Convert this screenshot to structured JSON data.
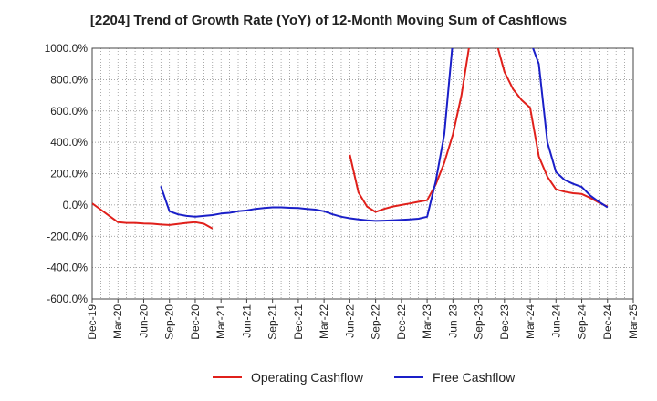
{
  "chart_data": {
    "type": "line",
    "title": "[2204]  Trend of Growth Rate (YoY) of 12-Month Moving Sum of Cashflows",
    "xlabel": "",
    "ylabel": "",
    "ylim": [
      -600,
      1000
    ],
    "y_ticks": [
      1000,
      800,
      600,
      400,
      200,
      0,
      -200,
      -400,
      -600
    ],
    "y_tick_labels": [
      "1000.0%",
      "800.0%",
      "600.0%",
      "400.0%",
      "200.0%",
      "0.0%",
      "-200.0%",
      "-400.0%",
      "-600.0%"
    ],
    "x_tick_labels": [
      "Dec-19",
      "Mar-20",
      "Jun-20",
      "Sep-20",
      "Dec-20",
      "Mar-21",
      "Jun-21",
      "Sep-21",
      "Dec-21",
      "Mar-22",
      "Jun-22",
      "Sep-22",
      "Dec-22",
      "Mar-23",
      "Jun-23",
      "Sep-23",
      "Dec-23",
      "Mar-24",
      "Jun-24",
      "Sep-24",
      "Dec-24",
      "Mar-25"
    ],
    "grid": true,
    "legend_position": "bottom-center",
    "series": [
      {
        "name": "Operating Cashflow",
        "color": "#e0201b",
        "points": [
          [
            "Dec-19",
            10
          ],
          [
            "Jan-20",
            -30
          ],
          [
            "Feb-20",
            -70
          ],
          [
            "Mar-20",
            -110
          ],
          [
            "Apr-20",
            -115
          ],
          [
            "May-20",
            -115
          ],
          [
            "Jun-20",
            -118
          ],
          [
            "Jul-20",
            -120
          ],
          [
            "Aug-20",
            -125
          ],
          [
            "Sep-20",
            -128
          ],
          [
            "Oct-20",
            -122
          ],
          [
            "Nov-20",
            -115
          ],
          [
            "Dec-20",
            -110
          ],
          [
            "Jan-21",
            -120
          ],
          [
            "Feb-21",
            -150
          ],
          [
            "Jun-22",
            320
          ],
          [
            "Jul-22",
            80
          ],
          [
            "Aug-22",
            -10
          ],
          [
            "Sep-22",
            -45
          ],
          [
            "Oct-22",
            -25
          ],
          [
            "Nov-22",
            -10
          ],
          [
            "Dec-22",
            0
          ],
          [
            "Jan-23",
            10
          ],
          [
            "Feb-23",
            20
          ],
          [
            "Mar-23",
            30
          ],
          [
            "Apr-23",
            130
          ],
          [
            "May-23",
            270
          ],
          [
            "Jun-23",
            450
          ],
          [
            "Jul-23",
            700
          ],
          [
            "Aug-23",
            1050
          ],
          [
            "Nov-23",
            1050
          ],
          [
            "Dec-23",
            850
          ],
          [
            "Jan-24",
            740
          ],
          [
            "Feb-24",
            670
          ],
          [
            "Mar-24",
            620
          ],
          [
            "Apr-24",
            310
          ],
          [
            "May-24",
            180
          ],
          [
            "Jun-24",
            100
          ],
          [
            "Jul-24",
            85
          ],
          [
            "Aug-24",
            75
          ],
          [
            "Sep-24",
            70
          ],
          [
            "Oct-24",
            45
          ],
          [
            "Nov-24",
            15
          ],
          [
            "Dec-24",
            -10
          ]
        ]
      },
      {
        "name": "Free Cashflow",
        "color": "#1a1fc8",
        "points": [
          [
            "Aug-20",
            120
          ],
          [
            "Sep-20",
            -40
          ],
          [
            "Oct-20",
            -60
          ],
          [
            "Nov-20",
            -70
          ],
          [
            "Dec-20",
            -75
          ],
          [
            "Jan-21",
            -70
          ],
          [
            "Feb-21",
            -65
          ],
          [
            "Mar-21",
            -55
          ],
          [
            "Apr-21",
            -50
          ],
          [
            "May-21",
            -40
          ],
          [
            "Jun-21",
            -35
          ],
          [
            "Jul-21",
            -25
          ],
          [
            "Aug-21",
            -20
          ],
          [
            "Sep-21",
            -15
          ],
          [
            "Oct-21",
            -15
          ],
          [
            "Nov-21",
            -18
          ],
          [
            "Dec-21",
            -20
          ],
          [
            "Jan-22",
            -25
          ],
          [
            "Feb-22",
            -30
          ],
          [
            "Mar-22",
            -40
          ],
          [
            "Apr-22",
            -60
          ],
          [
            "May-22",
            -75
          ],
          [
            "Jun-22",
            -85
          ],
          [
            "Jul-22",
            -92
          ],
          [
            "Aug-22",
            -98
          ],
          [
            "Sep-22",
            -102
          ],
          [
            "Oct-22",
            -100
          ],
          [
            "Nov-22",
            -98
          ],
          [
            "Dec-22",
            -95
          ],
          [
            "Jan-23",
            -92
          ],
          [
            "Feb-23",
            -88
          ],
          [
            "Mar-23",
            -75
          ],
          [
            "Apr-23",
            150
          ],
          [
            "May-23",
            450
          ],
          [
            "Jun-23",
            1050
          ],
          [
            "Mar-24",
            1050
          ],
          [
            "Apr-24",
            900
          ],
          [
            "May-24",
            400
          ],
          [
            "Jun-24",
            210
          ],
          [
            "Jul-24",
            160
          ],
          [
            "Aug-24",
            135
          ],
          [
            "Sep-24",
            115
          ],
          [
            "Oct-24",
            60
          ],
          [
            "Nov-24",
            20
          ],
          [
            "Dec-24",
            -15
          ]
        ]
      }
    ]
  }
}
